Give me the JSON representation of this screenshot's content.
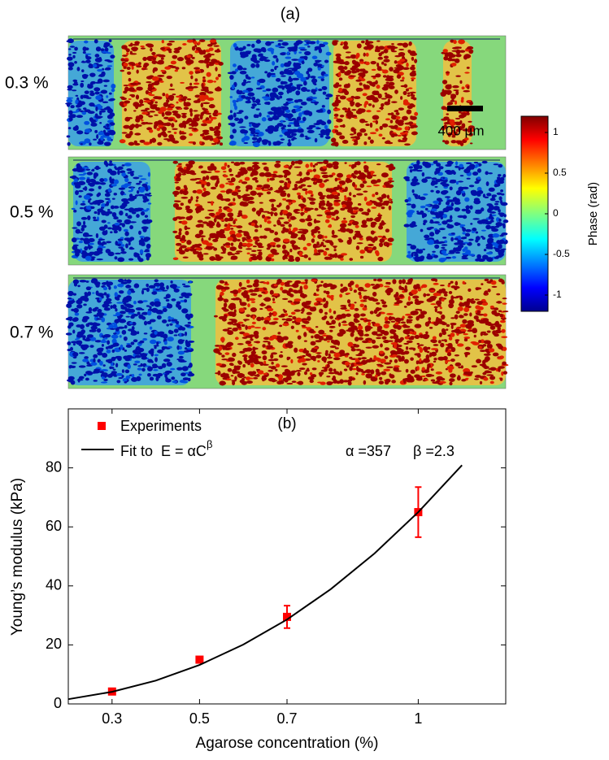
{
  "panel_a": {
    "label": "(a)",
    "rows": [
      {
        "label": "0.3 %"
      },
      {
        "label": "0.5 %"
      },
      {
        "label": "0.7 %"
      }
    ],
    "scale_bar": "400 μm",
    "colorbar": {
      "label": "Phase (rad)",
      "lim": [
        -1.2,
        1.2
      ],
      "ticks": [
        1,
        0.5,
        0,
        -0.5,
        -1
      ]
    }
  },
  "chart_data": {
    "type": "scatter",
    "title": "(b)",
    "xlabel": "Agarose concentration (%)",
    "ylabel": "Young’s modulus (kPa)",
    "xlim": [
      0.2,
      1.2
    ],
    "xticks": [
      0.3,
      0.5,
      0.7,
      1
    ],
    "ylim": [
      0,
      100
    ],
    "yticks": [
      0,
      20,
      40,
      60,
      80
    ],
    "series": [
      {
        "name": "Experiments",
        "color": "#ff0000",
        "x": [
          0.3,
          0.5,
          0.7,
          1
        ],
        "values": [
          4.2,
          15,
          29.5,
          65
        ],
        "errors": [
          1,
          1,
          3.8,
          8.5
        ]
      },
      {
        "name": "Fit to  E = αC",
        "name_sup": "β",
        "color": "#000000",
        "line": true,
        "x": [
          0.2,
          0.3,
          0.4,
          0.5,
          0.6,
          0.7,
          0.8,
          0.9,
          1.0,
          1.1
        ],
        "values": [
          1.6,
          4.1,
          7.9,
          13.2,
          20.1,
          28.6,
          38.9,
          51,
          65,
          80.9
        ]
      }
    ],
    "annotations": [
      "α =357",
      "β =2.3"
    ]
  }
}
